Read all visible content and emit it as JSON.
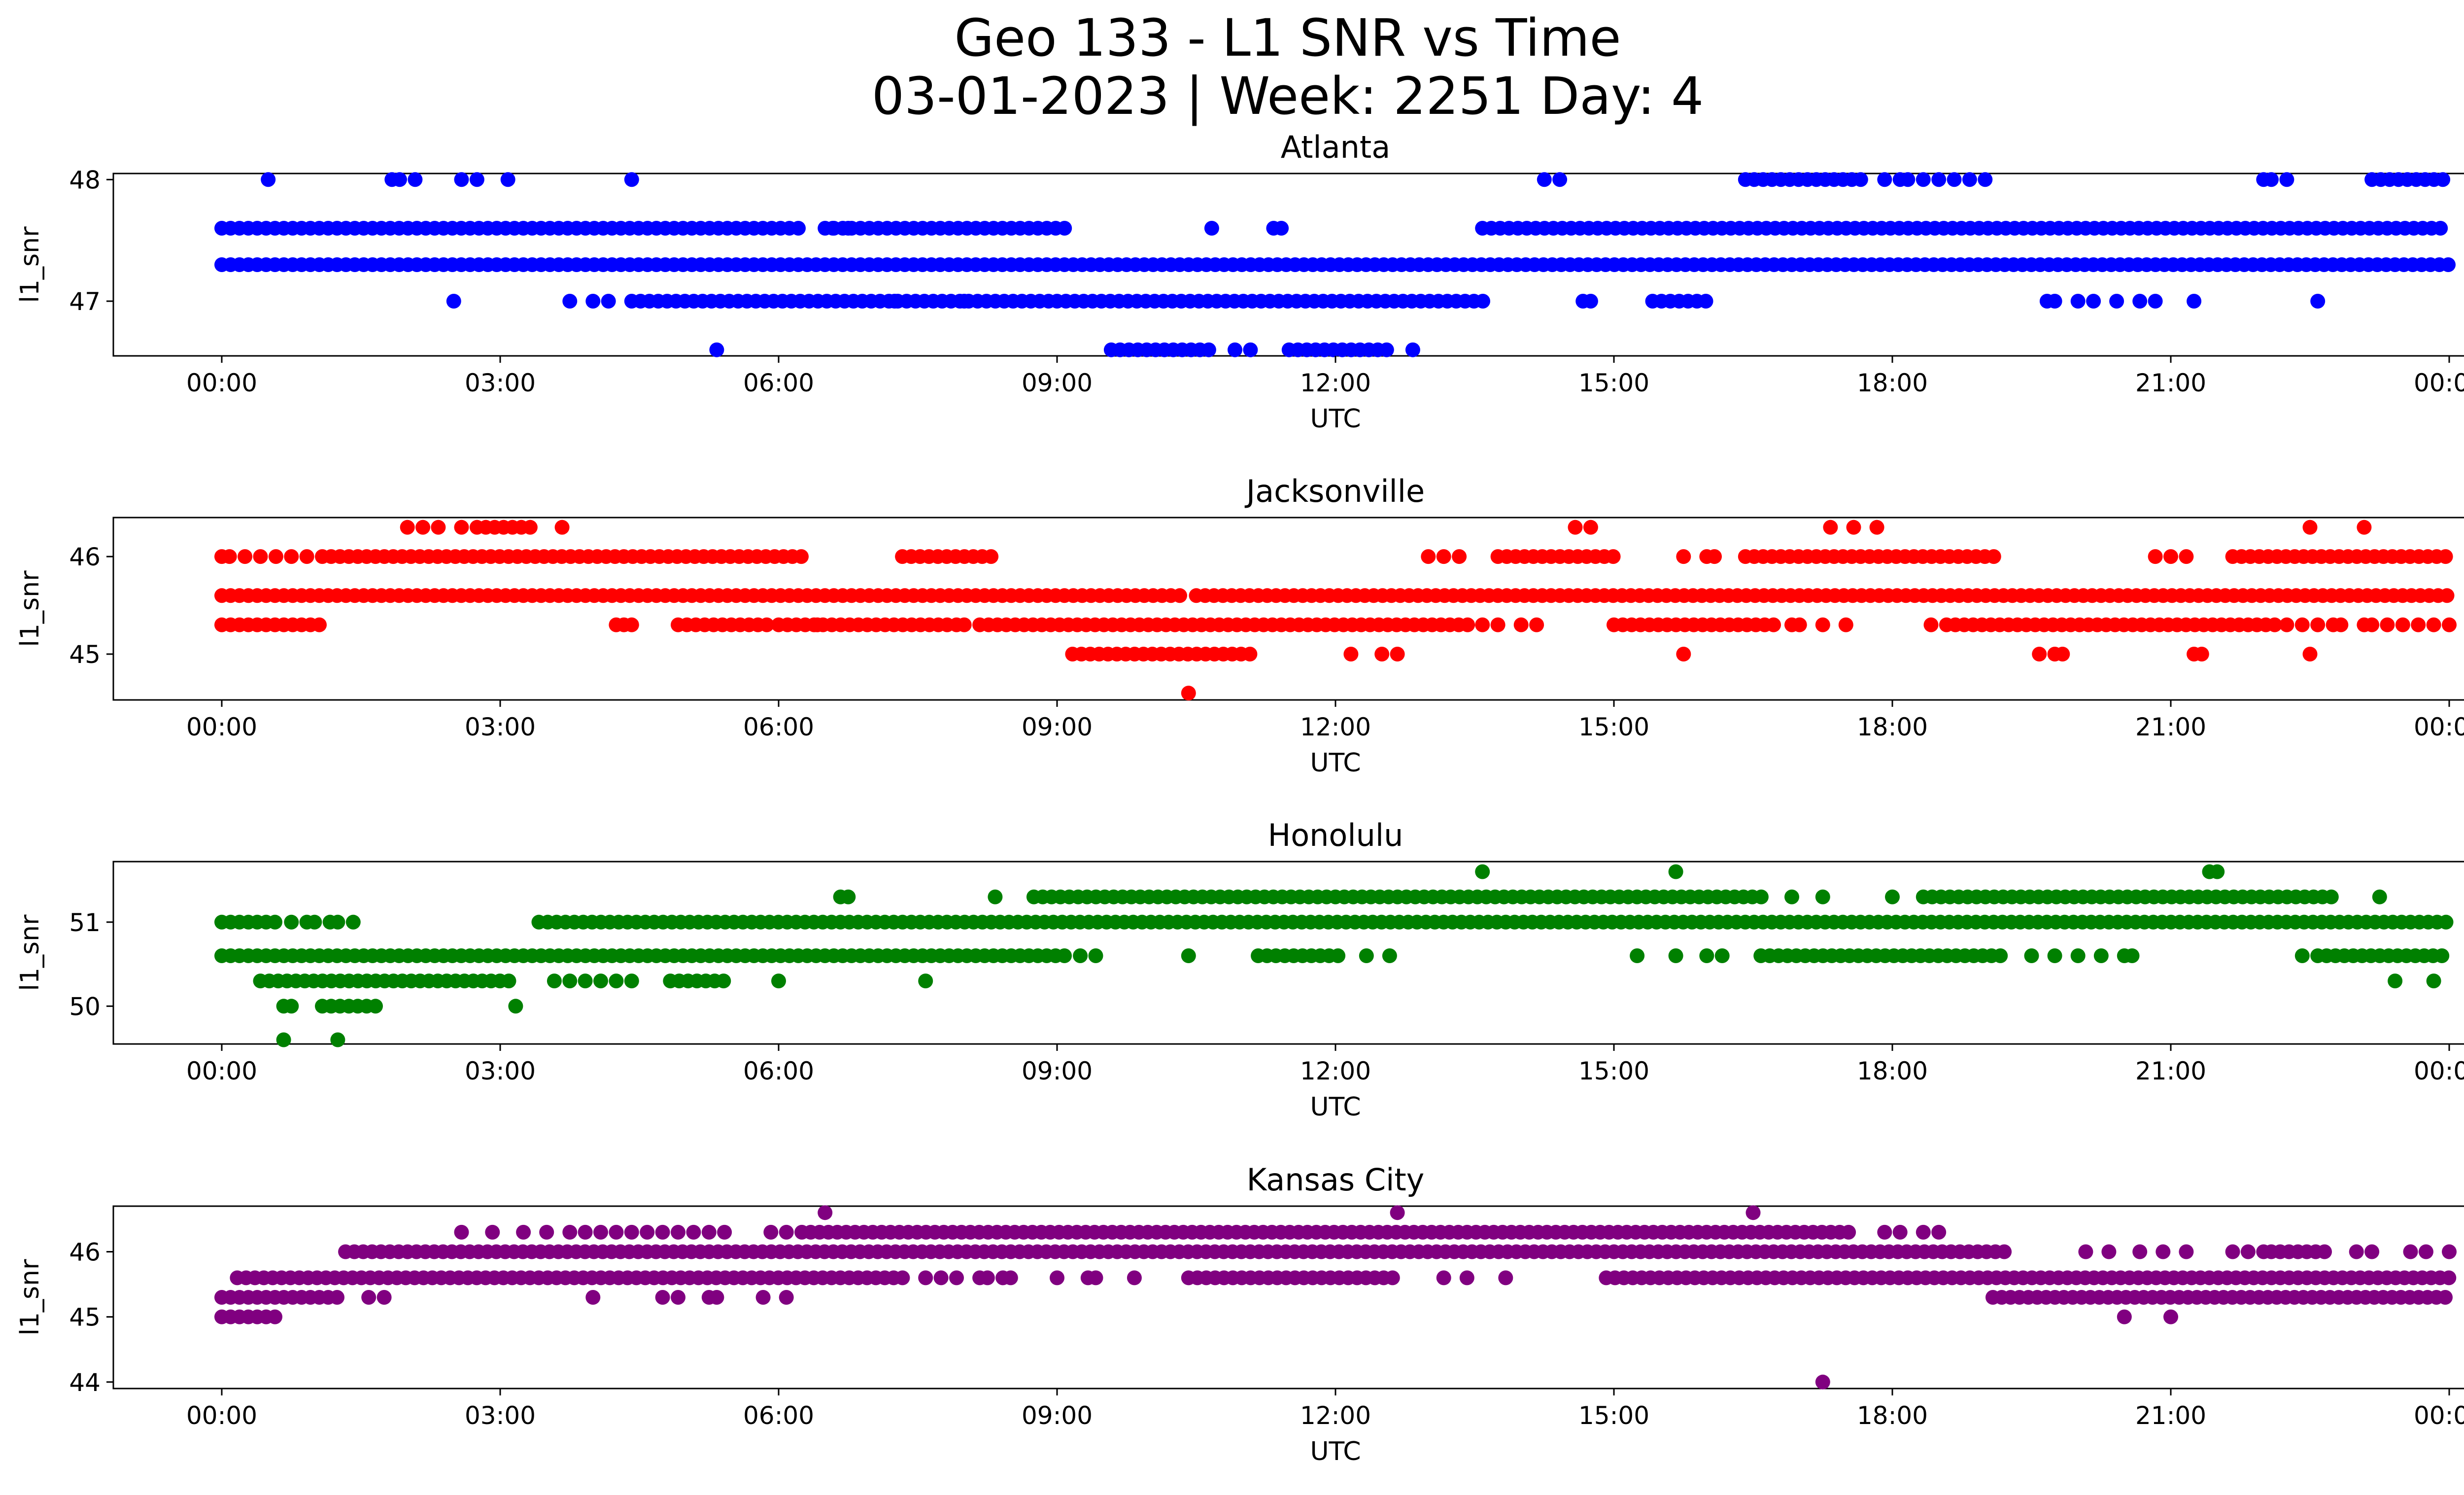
{
  "figure": {
    "title_line1": "Geo 133 - L1 SNR vs Time",
    "title_line2": "03-01-2023 | Week: 2251 Day: 4"
  },
  "chart_data": [
    {
      "type": "scatter",
      "title": "Atlanta",
      "xlabel": "UTC",
      "ylabel": "l1_snr",
      "color": "#0000ff",
      "xlim": [
        "00:00",
        "24:00"
      ],
      "ylim": [
        46.55,
        48.05
      ],
      "xticks": [
        "00:00",
        "03:00",
        "06:00",
        "09:00",
        "12:00",
        "15:00",
        "18:00",
        "21:00",
        "00:00"
      ],
      "yticks": [
        47,
        48
      ],
      "series": [
        {
          "y": 47.6,
          "segments": [
            [
              "00:00",
              "06:15"
            ],
            [
              "06:30",
              "09:10"
            ],
            [
              "13:35",
              "24:00"
            ]
          ],
          "points": [
            "06:35",
            "06:45",
            "10:40",
            "11:20",
            "11:25"
          ]
        },
        {
          "y": 47.3,
          "segments": [
            [
              "00:00",
              "24:00"
            ]
          ],
          "points": []
        },
        {
          "y": 47.0,
          "segments": [
            [
              "04:25",
              "08:55"
            ],
            [
              "09:00",
              "13:40"
            ],
            [
              "15:25",
              "16:00"
            ]
          ],
          "points": [
            "02:30",
            "03:45",
            "04:00",
            "04:10",
            "07:15",
            "08:00",
            "14:40",
            "14:45",
            "19:40",
            "19:45",
            "20:00",
            "20:10",
            "20:25",
            "20:40",
            "20:50",
            "21:15",
            "22:35"
          ]
        },
        {
          "y": 48.0,
          "segments": [
            [
              "16:25",
              "17:45"
            ],
            [
              "23:10",
              "24:00"
            ]
          ],
          "points": [
            "00:30",
            "01:50",
            "01:55",
            "02:05",
            "02:35",
            "02:45",
            "03:05",
            "04:25",
            "14:15",
            "14:25",
            "17:55",
            "18:05",
            "18:10",
            "18:20",
            "18:30",
            "18:40",
            "18:50",
            "19:00",
            "22:00",
            "22:05",
            "22:15"
          ]
        },
        {
          "y": 46.6,
          "segments": [
            [
              "09:35",
              "10:40"
            ],
            [
              "11:30",
              "12:35"
            ]
          ],
          "points": [
            "05:20",
            "10:55",
            "11:05",
            "12:50"
          ]
        }
      ]
    },
    {
      "type": "scatter",
      "title": "Jacksonville",
      "xlabel": "UTC",
      "ylabel": "l1_snr",
      "color": "#ff0000",
      "xlim": [
        "00:00",
        "24:00"
      ],
      "ylim": [
        44.53,
        46.4
      ],
      "xticks": [
        "00:00",
        "03:00",
        "06:00",
        "09:00",
        "12:00",
        "15:00",
        "18:00",
        "21:00",
        "00:00"
      ],
      "yticks": [
        45,
        46
      ],
      "series": [
        {
          "y": 46.0,
          "segments": [
            [
              "01:05",
              "06:15"
            ],
            [
              "07:20",
              "08:20"
            ],
            [
              "13:45",
              "15:05"
            ],
            [
              "16:25",
              "19:10"
            ],
            [
              "21:40",
              "24:00"
            ]
          ],
          "points": [
            "00:00",
            "00:05",
            "00:15",
            "00:25",
            "00:35",
            "00:45",
            "00:55",
            "13:00",
            "13:10",
            "13:20",
            "15:45",
            "16:00",
            "16:05",
            "20:50",
            "21:00",
            "21:10"
          ]
        },
        {
          "y": 45.6,
          "segments": [
            [
              "00:00",
              "10:20"
            ],
            [
              "10:30",
              "24:00"
            ]
          ],
          "points": []
        },
        {
          "y": 45.3,
          "segments": [
            [
              "00:00",
              "01:05"
            ],
            [
              "04:55",
              "05:55"
            ],
            [
              "06:00",
              "07:50"
            ],
            [
              "08:10",
              "13:30"
            ],
            [
              "15:00",
              "16:45"
            ],
            [
              "18:35",
              "22:10"
            ]
          ],
          "points": [
            "04:15",
            "04:20",
            "04:25",
            "06:25",
            "07:55",
            "08:00",
            "13:35",
            "13:45",
            "14:00",
            "14:10",
            "16:55",
            "17:00",
            "17:15",
            "17:30",
            "18:25",
            "22:15",
            "22:25",
            "22:35",
            "22:45",
            "22:50",
            "23:05",
            "23:10",
            "23:20",
            "23:30",
            "23:40",
            "23:50",
            "24:00"
          ]
        },
        {
          "y": 45.0,
          "segments": [
            [
              "09:10",
              "11:10"
            ]
          ],
          "points": [
            "12:10",
            "12:30",
            "12:40",
            "15:45",
            "19:35",
            "19:45",
            "19:50",
            "21:15",
            "21:20",
            "22:30"
          ]
        },
        {
          "y": 46.3,
          "segments": [
            [
              "02:45",
              "03:20"
            ]
          ],
          "points": [
            "02:00",
            "02:10",
            "02:20",
            "02:35",
            "03:40",
            "14:35",
            "14:45",
            "17:20",
            "17:35",
            "17:50",
            "22:30",
            "23:05"
          ]
        },
        {
          "y": 44.6,
          "segments": [],
          "points": [
            "10:25"
          ]
        }
      ]
    },
    {
      "type": "scatter",
      "title": "Honolulu",
      "xlabel": "UTC",
      "ylabel": "l1_snr",
      "color": "#008000",
      "xlim": [
        "00:00",
        "24:00"
      ],
      "ylim": [
        49.55,
        51.72
      ],
      "xticks": [
        "00:00",
        "03:00",
        "06:00",
        "09:00",
        "12:00",
        "15:00",
        "18:00",
        "21:00",
        "00:00"
      ],
      "yticks": [
        50,
        51
      ],
      "series": [
        {
          "y": 51.0,
          "segments": [
            [
              "00:00",
              "00:40"
            ],
            [
              "03:25",
              "24:00"
            ]
          ],
          "points": [
            "00:45",
            "00:55",
            "01:00",
            "01:10",
            "01:15",
            "01:25"
          ]
        },
        {
          "y": 50.6,
          "segments": [
            [
              "00:00",
              "09:05"
            ],
            [
              "11:10",
              "12:05"
            ],
            [
              "16:35",
              "19:10"
            ],
            [
              "22:35",
              "24:00"
            ]
          ],
          "points": [
            "09:15",
            "09:25",
            "10:25",
            "12:20",
            "12:35",
            "15:15",
            "15:40",
            "16:00",
            "16:10",
            "19:30",
            "19:45",
            "20:00",
            "20:15",
            "20:30",
            "20:35",
            "22:25"
          ]
        },
        {
          "y": 50.3,
          "segments": [
            [
              "00:25",
              "03:10"
            ],
            [
              "04:50",
              "05:25"
            ]
          ],
          "points": [
            "03:35",
            "03:45",
            "03:55",
            "04:05",
            "04:15",
            "04:25",
            "06:00",
            "07:35",
            "23:25",
            "23:50"
          ]
        },
        {
          "y": 51.3,
          "segments": [
            [
              "08:45",
              "16:40"
            ],
            [
              "18:20",
              "22:45"
            ]
          ],
          "points": [
            "06:40",
            "06:45",
            "08:20",
            "16:55",
            "17:15",
            "18:00",
            "23:15"
          ]
        },
        {
          "y": 50.0,
          "segments": [
            [
              "01:05",
              "01:40"
            ]
          ],
          "points": [
            "00:40",
            "00:45",
            "03:10"
          ]
        },
        {
          "y": 51.6,
          "segments": [],
          "points": [
            "13:35",
            "15:40",
            "21:25",
            "21:30"
          ]
        },
        {
          "y": 49.6,
          "segments": [],
          "points": [
            "00:40",
            "01:15"
          ]
        }
      ]
    },
    {
      "type": "scatter",
      "title": "Kansas City",
      "xlabel": "UTC",
      "ylabel": "l1_snr",
      "color": "#800080",
      "xlim": [
        "00:00",
        "24:00"
      ],
      "ylim": [
        43.9,
        46.7
      ],
      "xticks": [
        "00:00",
        "03:00",
        "06:00",
        "09:00",
        "12:00",
        "15:00",
        "18:00",
        "21:00",
        "00:00"
      ],
      "yticks": [
        44,
        45,
        46
      ],
      "series": [
        {
          "y": 46.0,
          "segments": [
            [
              "01:20",
              "19:15"
            ],
            [
              "22:05",
              "22:40"
            ]
          ],
          "points": [
            "20:05",
            "20:20",
            "20:40",
            "20:55",
            "21:10",
            "21:40",
            "21:50",
            "22:00",
            "23:00",
            "23:10",
            "23:35",
            "23:45",
            "24:00"
          ]
        },
        {
          "y": 45.6,
          "segments": [
            [
              "00:10",
              "07:25"
            ],
            [
              "10:25",
              "12:40"
            ],
            [
              "14:55",
              "24:00"
            ]
          ],
          "points": [
            "07:35",
            "07:45",
            "07:55",
            "08:10",
            "08:15",
            "08:25",
            "08:30",
            "09:00",
            "09:20",
            "09:25",
            "09:50",
            "13:10",
            "13:25",
            "13:50"
          ]
        },
        {
          "y": 45.3,
          "segments": [
            [
              "00:00",
              "01:15"
            ],
            [
              "19:05",
              "24:00"
            ]
          ],
          "points": [
            "01:35",
            "01:45",
            "04:00",
            "04:45",
            "04:55",
            "05:15",
            "05:20",
            "05:50",
            "06:05"
          ]
        },
        {
          "y": 46.3,
          "segments": [
            [
              "06:15",
              "17:35"
            ]
          ],
          "points": [
            "02:35",
            "02:55",
            "03:15",
            "03:30",
            "03:45",
            "03:55",
            "04:05",
            "04:15",
            "04:25",
            "04:35",
            "04:45",
            "04:55",
            "05:05",
            "05:15",
            "05:25",
            "05:55",
            "06:05",
            "17:55",
            "18:05",
            "18:20",
            "18:30"
          ]
        },
        {
          "y": 45.0,
          "segments": [
            [
              "00:00",
              "00:35"
            ]
          ],
          "points": [
            "20:30",
            "21:00"
          ]
        },
        {
          "y": 46.6,
          "segments": [],
          "points": [
            "06:30",
            "12:40",
            "16:30"
          ]
        },
        {
          "y": 44.0,
          "segments": [],
          "points": [
            "17:15"
          ]
        }
      ]
    }
  ]
}
